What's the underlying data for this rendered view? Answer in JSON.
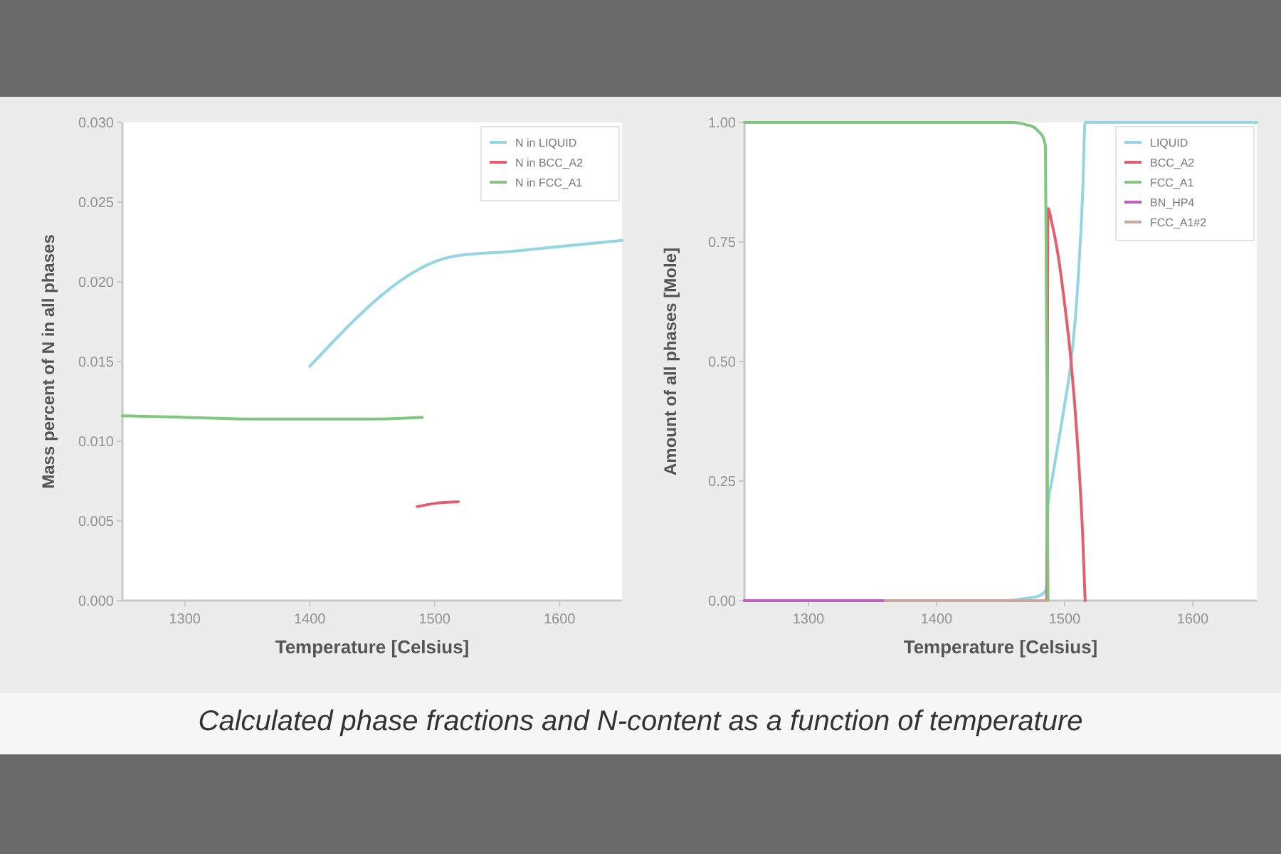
{
  "chart_data": [
    {
      "type": "line",
      "xlabel": "Temperature [Celsius]",
      "ylabel": "Mass percent of N in all phases",
      "xlim": [
        1250,
        1650
      ],
      "ylim": [
        0,
        0.03
      ],
      "xticks": [
        1300,
        1400,
        1500,
        1600
      ],
      "yticks": [
        {
          "value": 0,
          "label": "0.000"
        },
        {
          "value": 0.005,
          "label": "0.005"
        },
        {
          "value": 0.01,
          "label": "0.010"
        },
        {
          "value": 0.015,
          "label": "0.015"
        },
        {
          "value": 0.02,
          "label": "0.020"
        },
        {
          "value": 0.025,
          "label": "0.025"
        },
        {
          "value": 0.03,
          "label": "0.030"
        }
      ],
      "grid": false,
      "legend": "top right",
      "marker": "none",
      "line_style": "solid",
      "annotations": [
        "Calculated phase fractions and N-content as a function of temperature"
      ],
      "series": [
        {
          "name": "N in LIQUID",
          "color": "#93d5e3",
          "x": [
            1400,
            1515,
            1560,
            1650
          ],
          "values": [
            0.0147,
            0.0216,
            0.0219,
            0.0226
          ]
        },
        {
          "name": "N in BCC_A2",
          "color": "#e2606e",
          "x": [
            1486,
            1500,
            1519
          ],
          "values": [
            0.0059,
            0.0061,
            0.0062
          ]
        },
        {
          "name": "N in FCC_A1",
          "color": "#80c880",
          "x": [
            1250,
            1300,
            1350,
            1400,
            1450,
            1490
          ],
          "values": [
            0.0116,
            0.0115,
            0.0114,
            0.0114,
            0.0114,
            0.0115
          ]
        }
      ]
    },
    {
      "type": "line",
      "xlabel": "Temperature [Celsius]",
      "ylabel": "Amount of all phases [Mole]",
      "xlim": [
        1250,
        1650
      ],
      "ylim": [
        0,
        1
      ],
      "xticks": [
        1300,
        1400,
        1500,
        1600
      ],
      "yticks": [
        {
          "value": 0,
          "label": "0.00"
        },
        {
          "value": 0.25,
          "label": "0.25"
        },
        {
          "value": 0.5,
          "label": "0.50"
        },
        {
          "value": 0.75,
          "label": "0.75"
        },
        {
          "value": 1,
          "label": "1.00"
        }
      ],
      "grid": false,
      "legend": "top right",
      "marker": "none",
      "line_style": "solid",
      "series": [
        {
          "name": "LIQUID",
          "color": "#93d5e3",
          "x": [
            1250,
            1450,
            1470,
            1480,
            1485,
            1486,
            1487,
            1490,
            1495,
            1500,
            1505,
            1510,
            1514,
            1516,
            1650
          ],
          "values": [
            0,
            0,
            0.005,
            0.01,
            0.02,
            0.03,
            0.2,
            0.25,
            0.33,
            0.41,
            0.5,
            0.65,
            0.85,
            1,
            1
          ]
        },
        {
          "name": "BCC_A2",
          "color": "#e2606e",
          "x": [
            1250,
            1486,
            1487,
            1490,
            1495,
            1500,
            1505,
            1510,
            1514,
            1516
          ],
          "values": [
            0,
            0,
            0.82,
            0.79,
            0.72,
            0.62,
            0.5,
            0.33,
            0.14,
            0
          ]
        },
        {
          "name": "FCC_A1",
          "color": "#80c880",
          "x": [
            1250,
            1460,
            1470,
            1476,
            1480,
            1483,
            1485,
            1486,
            1487
          ],
          "values": [
            1,
            1,
            0.995,
            0.99,
            0.98,
            0.97,
            0.95,
            0.5,
            0
          ]
        },
        {
          "name": "BN_HP4",
          "color": "#c060c0",
          "x": [
            1250,
            1360
          ],
          "values": [
            0,
            0
          ]
        },
        {
          "name": "FCC_A1#2",
          "color": "#c8a8a0",
          "x": [
            1360,
            1486
          ],
          "values": [
            0,
            0
          ]
        }
      ]
    }
  ]
}
